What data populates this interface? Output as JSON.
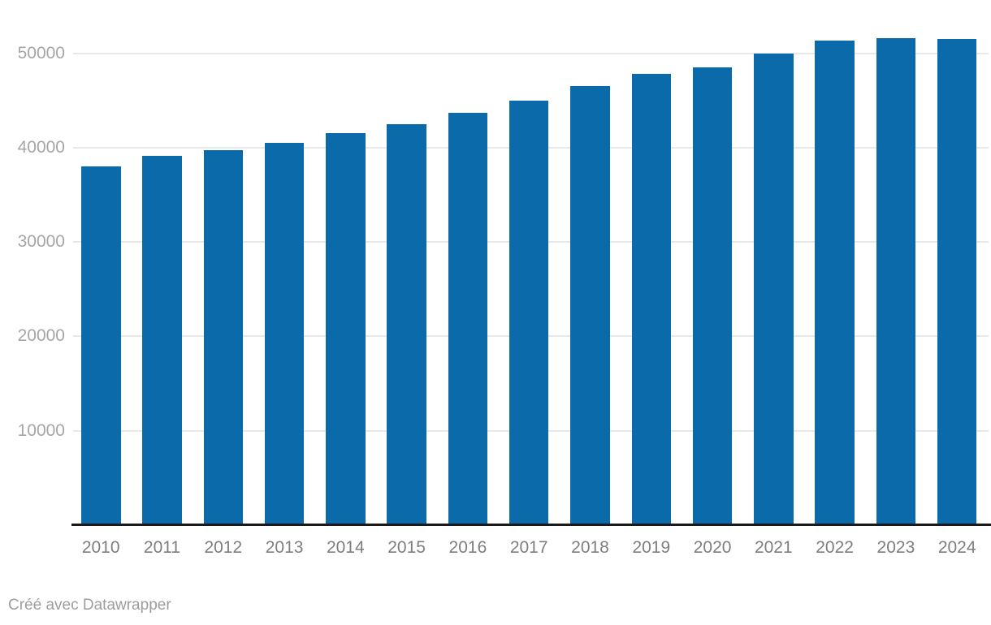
{
  "chart_data": {
    "type": "bar",
    "title": "",
    "xlabel": "",
    "ylabel": "",
    "categories": [
      "2010",
      "2011",
      "2012",
      "2013",
      "2014",
      "2015",
      "2016",
      "2017",
      "2018",
      "2019",
      "2020",
      "2021",
      "2022",
      "2023",
      "2024"
    ],
    "values": [
      38000,
      39100,
      39700,
      40500,
      41500,
      42500,
      43700,
      45000,
      46500,
      47800,
      48500,
      50000,
      51300,
      51600,
      51500
    ],
    "ylim": [
      0,
      52000
    ],
    "yticks": [
      10000,
      20000,
      30000,
      40000,
      50000
    ],
    "grid": "horizontal-on",
    "legend": "none",
    "colors": {
      "bar": "#0b6aa9",
      "gridline": "#e8e8e8",
      "axis_line": "#1a1a1a",
      "x_tick_label": "#7e7e7e",
      "y_tick_label": "#a6a6a6",
      "footer_text": "#9d9d9d"
    }
  },
  "footer": {
    "prefix": "Créé avec ",
    "link_label": "Datawrapper"
  }
}
